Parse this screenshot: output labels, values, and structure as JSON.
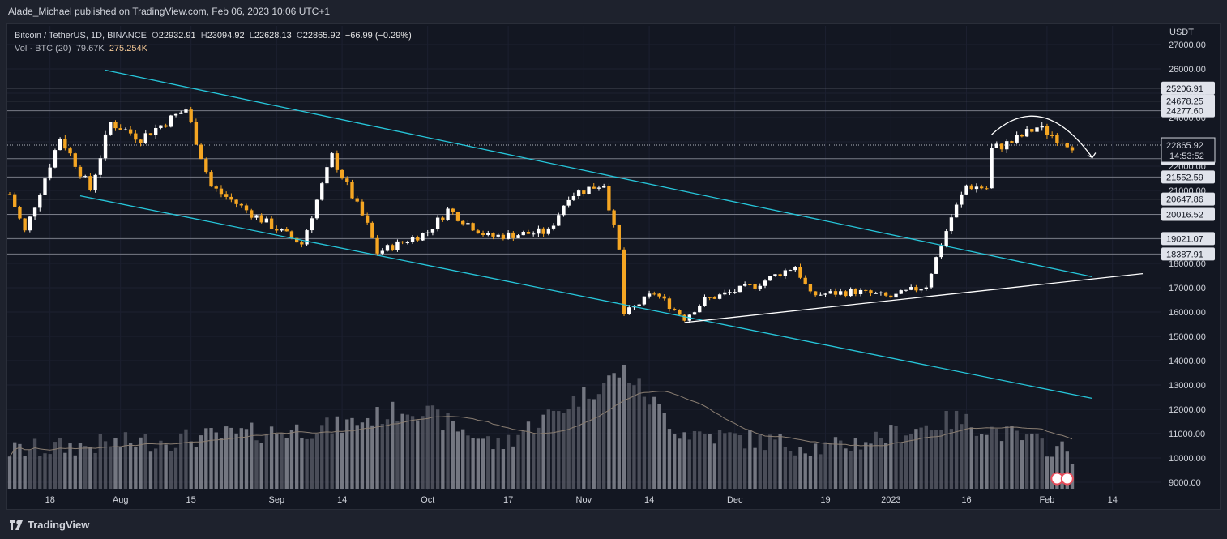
{
  "header": {
    "publisher": "Alade_Michael published on TradingView.com, Feb 06, 2023 10:06 UTC+1"
  },
  "legend": {
    "symbol": "Bitcoin / TetherUS, 1D, BINANCE",
    "open_label": "O",
    "open": "22932.91",
    "high_label": "H",
    "high": "23094.92",
    "low_label": "L",
    "low": "22628.13",
    "close_label": "C",
    "close": "22865.92",
    "change": "−66.99 (−0.29%)",
    "vol_label": "Vol · BTC (20)",
    "vol_value": "79.67K",
    "vol_ma": "275.254K"
  },
  "footer": {
    "brand": "TradingView"
  },
  "colors": {
    "background": "#131722",
    "up_candle": "#ffffff",
    "down_candle": "#f5a623",
    "channel_line": "#26c6da",
    "trend_line": "#ffffff",
    "level_line": "#787b86",
    "volume_up": "#5d606b",
    "volume_down": "#9598a1"
  },
  "chart_data": {
    "type": "candlestick",
    "currency": "USDT",
    "y_axis": {
      "ticks": [
        "27000.00",
        "26000.00",
        "25000.00",
        "24000.00",
        "23000.00",
        "22000.00",
        "21000.00",
        "20000.00",
        "19000.00",
        "18000.00",
        "17000.00",
        "16000.00",
        "15000.00",
        "14000.00",
        "13000.00",
        "12000.00",
        "11000.00",
        "10000.00",
        "9000.00"
      ],
      "range": [
        9000,
        27000
      ]
    },
    "x_axis": {
      "ticks": [
        "18",
        "Aug",
        "15",
        "Sep",
        "14",
        "Oct",
        "17",
        "Nov",
        "14",
        "Dec",
        "19",
        "2023",
        "16",
        "Feb",
        "14"
      ],
      "range": [
        "2022-07-10",
        "2023-02-20"
      ]
    },
    "levels": [
      "25206.91",
      "24678.25",
      "24277.60",
      "22306.54",
      "21552.59",
      "20647.86",
      "20016.52",
      "19021.07",
      "18387.91"
    ],
    "current_price": "22865.92",
    "countdown": "14:53:52",
    "key_points": [
      {
        "date": "2022-07-10",
        "close": 20850
      },
      {
        "date": "2022-07-13",
        "close": 19300
      },
      {
        "date": "2022-07-20",
        "close": 23200
      },
      {
        "date": "2022-07-26",
        "close": 21050
      },
      {
        "date": "2022-07-30",
        "close": 23800
      },
      {
        "date": "2022-08-05",
        "close": 23150
      },
      {
        "date": "2022-08-14",
        "close": 24350
      },
      {
        "date": "2022-08-19",
        "close": 21150
      },
      {
        "date": "2022-08-27",
        "close": 20050
      },
      {
        "date": "2022-09-06",
        "close": 18800
      },
      {
        "date": "2022-09-12",
        "close": 22400
      },
      {
        "date": "2022-09-19",
        "close": 19550
      },
      {
        "date": "2022-09-21",
        "close": 18450
      },
      {
        "date": "2022-10-01",
        "close": 19300
      },
      {
        "date": "2022-10-05",
        "close": 20200
      },
      {
        "date": "2022-10-13",
        "close": 19100
      },
      {
        "date": "2022-10-25",
        "close": 19300
      },
      {
        "date": "2022-10-29",
        "close": 20800
      },
      {
        "date": "2022-11-05",
        "close": 21300
      },
      {
        "date": "2022-11-08",
        "close": 18500
      },
      {
        "date": "2022-11-09",
        "close": 15900
      },
      {
        "date": "2022-11-15",
        "close": 16800
      },
      {
        "date": "2022-11-21",
        "close": 15750
      },
      {
        "date": "2022-11-25",
        "close": 16500
      },
      {
        "date": "2022-12-05",
        "close": 17100
      },
      {
        "date": "2022-12-13",
        "close": 17900
      },
      {
        "date": "2022-12-16",
        "close": 16700
      },
      {
        "date": "2022-12-25",
        "close": 16850
      },
      {
        "date": "2023-01-01",
        "close": 16600
      },
      {
        "date": "2023-01-08",
        "close": 17100
      },
      {
        "date": "2023-01-13",
        "close": 19900
      },
      {
        "date": "2023-01-16",
        "close": 21200
      },
      {
        "date": "2023-01-20",
        "close": 21100
      },
      {
        "date": "2023-01-21",
        "close": 22700
      },
      {
        "date": "2023-01-25",
        "close": 23000
      },
      {
        "date": "2023-01-30",
        "close": 23600
      },
      {
        "date": "2023-02-06",
        "close": 22866
      }
    ],
    "volume_profile": [
      {
        "date": "2022-07-10",
        "vol": 10200
      },
      {
        "date": "2022-08-14",
        "vol": 10700
      },
      {
        "date": "2022-09-13",
        "vol": 11200
      },
      {
        "date": "2022-09-28",
        "vol": 12000
      },
      {
        "date": "2022-10-15",
        "vol": 10400
      },
      {
        "date": "2022-11-09",
        "vol": 13500
      },
      {
        "date": "2022-11-20",
        "vol": 11000
      },
      {
        "date": "2022-12-20",
        "vol": 10300
      },
      {
        "date": "2023-01-14",
        "vol": 11500
      },
      {
        "date": "2023-02-06",
        "vol": 10100
      }
    ]
  }
}
